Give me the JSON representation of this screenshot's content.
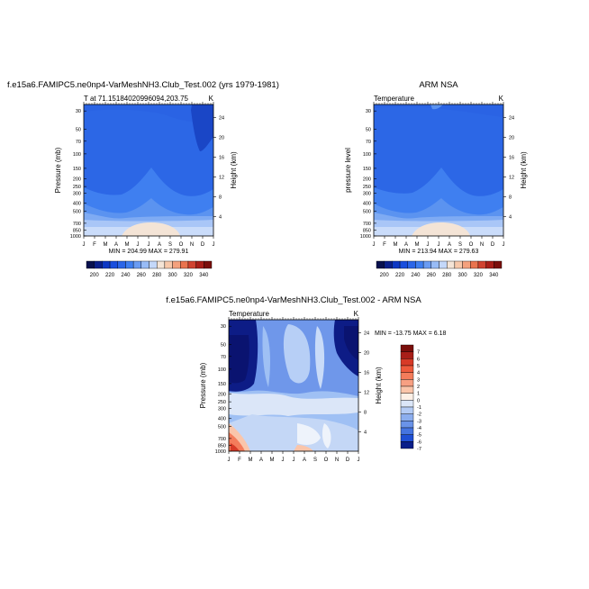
{
  "chart_data": [
    {
      "type": "heatmap",
      "title_left": "f.e15a6.FAMIPC5.ne0np4-VarMeshNH3.Club_Test.002 (yrs 1979-1981)",
      "subtitle_left": "T at 71.15184020996094,203.75",
      "subtitle_right": "K",
      "ylabel": "Pressure (mb)",
      "ylabel_right": "Height (km)",
      "x_ticks": [
        "J",
        "F",
        "M",
        "A",
        "M",
        "J",
        "J",
        "A",
        "S",
        "O",
        "N",
        "D",
        "J"
      ],
      "y_ticks": [
        "30",
        "50",
        "70",
        "100",
        "150",
        "200",
        "250",
        "300",
        "400",
        "500",
        "700",
        "850",
        "1000"
      ],
      "y_ticks_right": [
        "24",
        "20",
        "16",
        "12",
        "8",
        "4"
      ],
      "stats": "MIN = 204.99 MAX = 279.91",
      "colorbar_labels": [
        "200",
        "220",
        "240",
        "260",
        "280",
        "300",
        "320",
        "340"
      ],
      "colorbar_levels": [
        190,
        200,
        210,
        220,
        230,
        240,
        250,
        260,
        270,
        280,
        290,
        300,
        310,
        320,
        330,
        340,
        350
      ]
    },
    {
      "type": "heatmap",
      "title_right": "ARM NSA",
      "subtitle_left": "Temperature",
      "subtitle_right": "K",
      "ylabel": "pressure level",
      "ylabel_right": "Height (km)",
      "x_ticks": [
        "J",
        "F",
        "M",
        "A",
        "M",
        "J",
        "J",
        "A",
        "S",
        "O",
        "N",
        "D",
        "J"
      ],
      "y_ticks": [
        "30",
        "50",
        "70",
        "100",
        "150",
        "200",
        "250",
        "300",
        "400",
        "500",
        "700",
        "850",
        "1000"
      ],
      "y_ticks_right": [
        "24",
        "20",
        "16",
        "12",
        "8",
        "4"
      ],
      "stats": "MIN = 213.94 MAX = 279.63",
      "colorbar_labels": [
        "200",
        "220",
        "240",
        "260",
        "280",
        "300",
        "320",
        "340"
      ],
      "colorbar_levels": [
        190,
        200,
        210,
        220,
        230,
        240,
        250,
        260,
        270,
        280,
        290,
        300,
        310,
        320,
        330,
        340,
        350
      ]
    },
    {
      "type": "heatmap",
      "title": "f.e15a6.FAMIPC5.ne0np4-VarMeshNH3.Club_Test.002 - ARM NSA",
      "subtitle_left": "Temperature",
      "subtitle_right": "K",
      "ylabel": "Pressure (mb)",
      "ylabel_right": "Height (km)",
      "x_ticks": [
        "J",
        "F",
        "M",
        "A",
        "M",
        "J",
        "J",
        "A",
        "S",
        "O",
        "N",
        "D",
        "J"
      ],
      "y_ticks": [
        "30",
        "50",
        "70",
        "100",
        "150",
        "200",
        "250",
        "300",
        "400",
        "500",
        "700",
        "850",
        "1000"
      ],
      "y_ticks_right": [
        "24",
        "20",
        "16",
        "12",
        "8",
        "4"
      ],
      "stats": "MIN = -13.75 MAX =   6.18",
      "colorbar_labels": [
        "7",
        "6",
        "5",
        "4",
        "3",
        "2",
        "1",
        "0",
        "-1",
        "-2",
        "-3",
        "-4",
        "-5",
        "-6",
        "-7"
      ]
    }
  ],
  "colors": {
    "abs_ramp": [
      "#08104e",
      "#0a1f8a",
      "#0d37c4",
      "#1a4fdd",
      "#2b66e8",
      "#3f7ff0",
      "#6a9cf2",
      "#98bcf6",
      "#c4d8fa",
      "#f4e4d6",
      "#f7c8aa",
      "#f4a17d",
      "#e9744f",
      "#d04330",
      "#a81e18",
      "#7a0e0b"
    ],
    "diff_ramp": [
      "#7a0e0b",
      "#a81e18",
      "#d73a27",
      "#ee5a3c",
      "#f47c5b",
      "#f7a082",
      "#fac5aa",
      "#fdf0e6",
      "#dbe6f8",
      "#b4cbf4",
      "#8caeee",
      "#6a93e8",
      "#4574e0",
      "#1f4fd4",
      "#0a1f8a"
    ]
  }
}
